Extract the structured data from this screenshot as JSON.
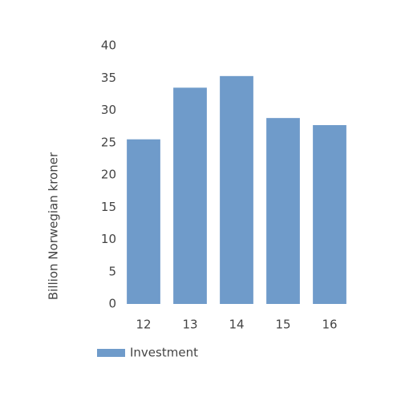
{
  "chart_data": {
    "type": "bar",
    "y_label": "Billion Norwegian kroner",
    "categories": [
      "12",
      "13",
      "14",
      "15",
      "16"
    ],
    "series": [
      {
        "name": "Investment",
        "color": "#6f9bca",
        "values": [
          25.5,
          33.5,
          35.3,
          28.8,
          27.7
        ]
      }
    ],
    "ylim": [
      0,
      40
    ],
    "yticks": [
      0,
      5,
      10,
      15,
      20,
      25,
      30,
      35,
      40
    ],
    "grid": false
  }
}
